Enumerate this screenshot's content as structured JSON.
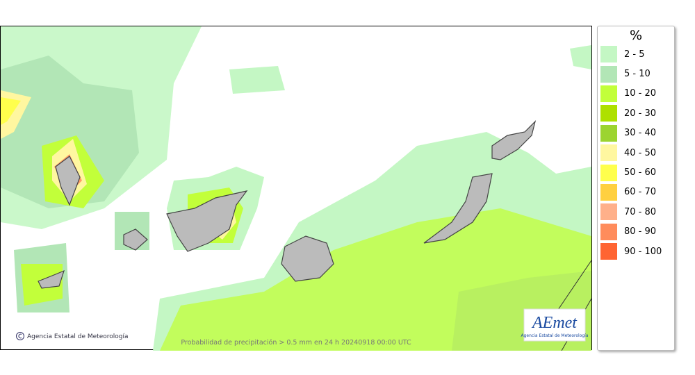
{
  "legend": {
    "title": "%",
    "items": [
      {
        "label": "2 - 5",
        "color": "#c4f7c4"
      },
      {
        "label": "5 - 10",
        "color": "#b2e6b6"
      },
      {
        "label": "10 - 20",
        "color": "#c2ff3a"
      },
      {
        "label": "20 - 30",
        "color": "#aee000"
      },
      {
        "label": "30 - 40",
        "color": "#9cd430"
      },
      {
        "label": "40 - 50",
        "color": "#fff7a0"
      },
      {
        "label": "50 - 60",
        "color": "#ffff4c"
      },
      {
        "label": "60 - 70",
        "color": "#ffd040"
      },
      {
        "label": "70 - 80",
        "color": "#ffb08a"
      },
      {
        "label": "80 - 90",
        "color": "#ff8c5c"
      },
      {
        "label": "90 - 100",
        "color": "#ff6432"
      }
    ]
  },
  "map": {
    "credit": "Agencia Estatal de Meteorología",
    "caption": "Probabilidad de precipitación > 0.5 mm en 24 h 20240918 00:00 UTC",
    "logo": {
      "text": "AEmet",
      "subtitle": "Agencia Estatal de Meteorología"
    }
  }
}
